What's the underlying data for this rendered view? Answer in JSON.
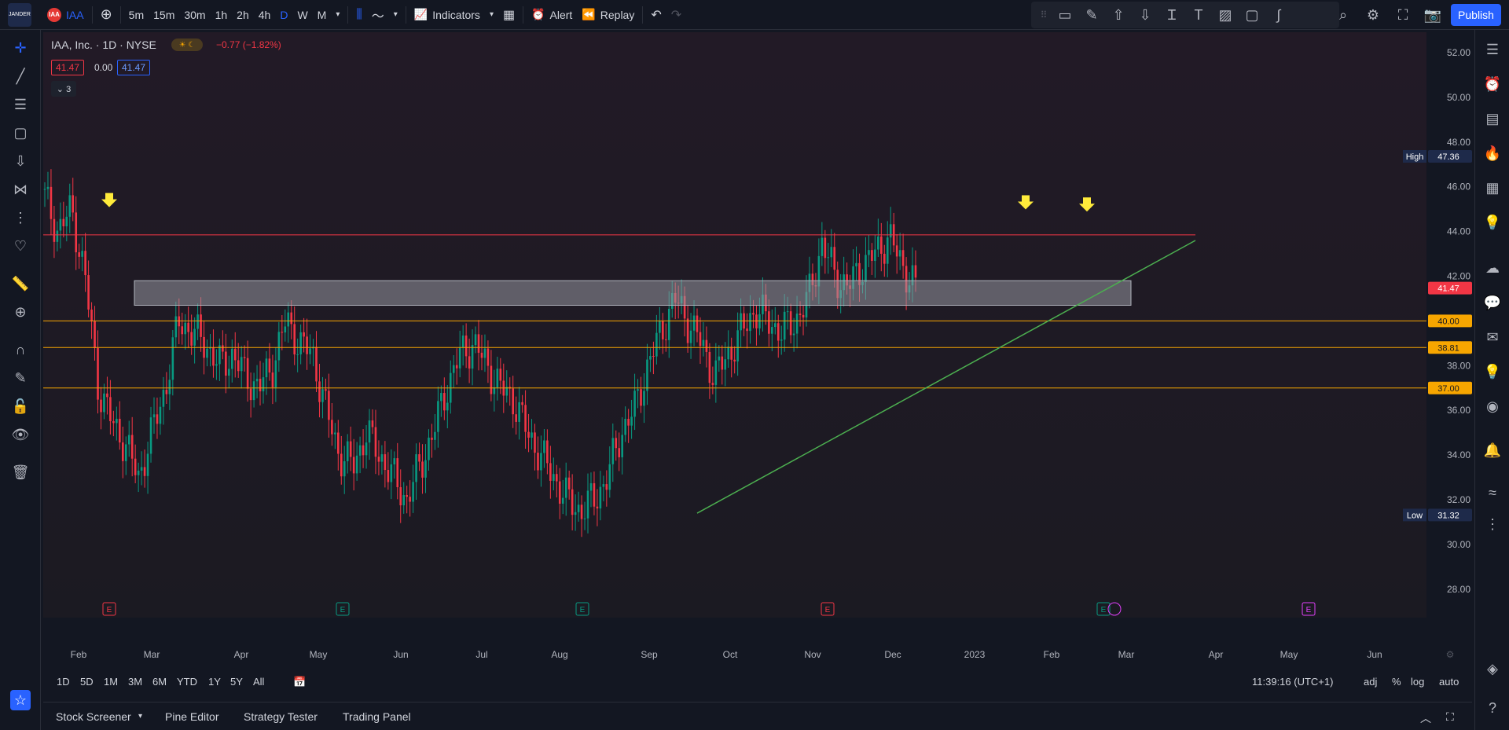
{
  "topbar": {
    "logo_text": "JANDER",
    "symbol_icon_text": "IAA",
    "symbol": "IAA",
    "intervals": [
      "5m",
      "15m",
      "30m",
      "1h",
      "2h",
      "4h",
      "D",
      "W",
      "M"
    ],
    "active_interval": "D",
    "indicators_label": "Indicators",
    "alert_label": "Alert",
    "replay_label": "Replay",
    "publish_label": "Publish"
  },
  "legend": {
    "title": "IAA, Inc. · 1D · NYSE",
    "change": "−0.77 (−1.82%)",
    "price_red": "41.47",
    "price_zero": "0.00",
    "price_blue": "41.47",
    "collapse_label": "⌄ 3"
  },
  "price_axis": {
    "ticks": [
      "52.00",
      "50.00",
      "48.00",
      "46.00",
      "44.00",
      "42.00",
      "40.00",
      "38.00",
      "36.00",
      "34.00",
      "32.00",
      "30.00",
      "28.00"
    ],
    "high_label": "High",
    "high_value": "47.36",
    "low_label": "Low",
    "low_value": "31.32",
    "last_price": "41.47",
    "level_40": "40.00",
    "level_3881": "38.81",
    "level_37": "37.00"
  },
  "time_axis": [
    "Feb",
    "Mar",
    "Apr",
    "May",
    "Jun",
    "Jul",
    "Aug",
    "Sep",
    "Oct",
    "Nov",
    "Dec",
    "2023",
    "Feb",
    "Mar",
    "Apr",
    "May",
    "Jun"
  ],
  "events": [
    "E",
    "E",
    "E",
    "E",
    "E",
    "E"
  ],
  "range_bar": {
    "ranges": [
      "1D",
      "5D",
      "1M",
      "3M",
      "6M",
      "YTD",
      "1Y",
      "5Y",
      "All"
    ],
    "clock": "11:39:16 (UTC+1)",
    "adj": "adj",
    "percent": "%",
    "log": "log",
    "auto": "auto"
  },
  "bottom_panel": {
    "tabs": [
      "Stock Screener",
      "Pine Editor",
      "Strategy Tester",
      "Trading Panel"
    ]
  },
  "colors": {
    "up": "#089981",
    "down": "#f23645",
    "resistance": "#f23645",
    "support": "#f7a600",
    "trend": "#4caf50",
    "accent": "#2962ff"
  }
}
